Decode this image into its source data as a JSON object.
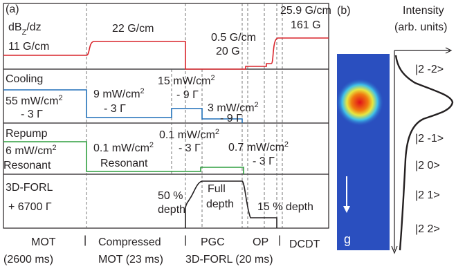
{
  "panel_a": {
    "texts": [
      {
        "text": "(a)"
      },
      {
        "text": "dB",
        "sub": "Z",
        "tail": "/dz"
      },
      {
        "text": "11 G/cm"
      },
      {
        "text": "22 G/cm"
      },
      {
        "text": "25.9 G/cm"
      },
      {
        "text": "161 G"
      },
      {
        "text": "0.5 G/cm"
      },
      {
        "text": "20 G"
      },
      {
        "text": "Cooling"
      },
      {
        "text": "55 mW/cm",
        "sup": "2"
      },
      {
        "text": "- 3 Γ"
      },
      {
        "text": "9 mW/cm",
        "sup": "2"
      },
      {
        "text": "- 3 Γ"
      },
      {
        "text": "15 mW/cm",
        "sup": "2"
      },
      {
        "text": "- 9 Γ"
      },
      {
        "text": "3 mW/cm",
        "sup": "2"
      },
      {
        "text": "- 9 Γ"
      },
      {
        "text": "Repump"
      },
      {
        "text": "6 mW/cm",
        "sup": "2"
      },
      {
        "text": "Resonant"
      },
      {
        "text": "0.1 mW/cm",
        "sup": "2"
      },
      {
        "text": "Resonant"
      },
      {
        "text": "0.1 mW/cm",
        "sup": "2"
      },
      {
        "text": "- 3 Γ"
      },
      {
        "text": "0.7 mW/cm",
        "sup": "2"
      },
      {
        "text": "- 3 Γ"
      },
      {
        "text": "3D-FORL"
      },
      {
        "text": "+ 6700 Γ"
      },
      {
        "text": "50 %"
      },
      {
        "text": "depth"
      },
      {
        "text": "Full"
      },
      {
        "text": "depth"
      },
      {
        "text": "15 % depth"
      }
    ],
    "footer": [
      "MOT",
      "(2600 ms)",
      "|",
      "Compressed",
      "MOT (23 ms)",
      "|",
      "PGC",
      "3D-FORL (20 ms)",
      "OP",
      "|",
      "DCDT"
    ]
  },
  "panel_b": {
    "label": "(b)",
    "axis_title": [
      "Intensity",
      "(arb. units)"
    ],
    "gravity": "g",
    "states": [
      "|2 -2>",
      "|2 -1>",
      "|2 0>",
      "|2 1>",
      "|2 2>"
    ]
  }
}
